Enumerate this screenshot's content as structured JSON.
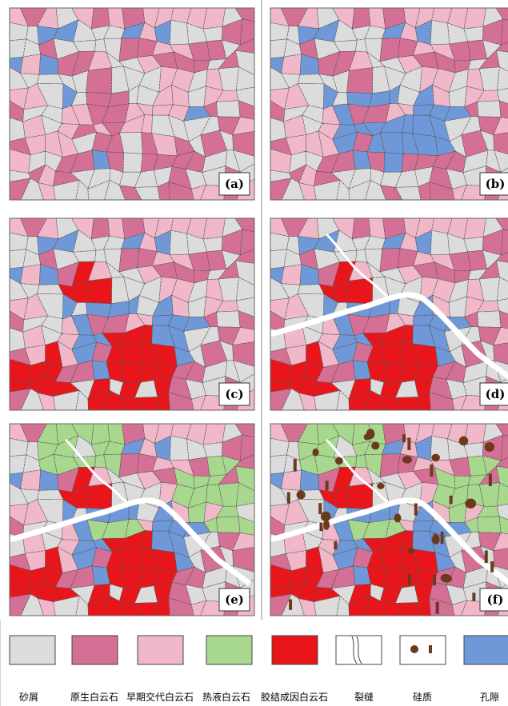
{
  "panels": [
    {
      "label": "(a)"
    },
    {
      "label": "(b)"
    },
    {
      "label": "(c)"
    },
    {
      "label": "(d)"
    },
    {
      "label": "(e)"
    },
    {
      "label": "(f)"
    }
  ],
  "legend": [
    {
      "label": "砂屑"
    },
    {
      "label": "原生白云石"
    },
    {
      "label": "早期交代白云石"
    },
    {
      "label": "热液白云石"
    },
    {
      "label": "胶结成因白云石"
    },
    {
      "label": "裂缝"
    },
    {
      "label": "硅质"
    },
    {
      "label": "孔隙"
    }
  ]
}
